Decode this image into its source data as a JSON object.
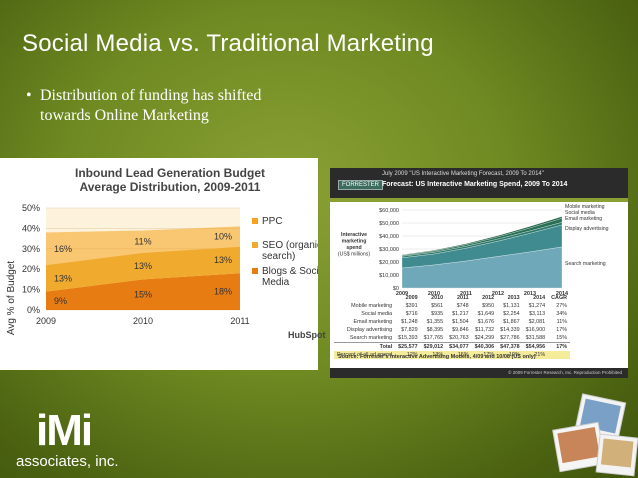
{
  "slide": {
    "title": "Social Media vs. Traditional Marketing",
    "bullet": "Distribution of funding has shifted towards Online Marketing",
    "bullet_line1": "Distribution of funding has shifted",
    "bullet_line2": "towards Online Marketing"
  },
  "colors": {
    "background": "#6f8a22",
    "ppc": "#f6a21c",
    "seo": "#f0aa2e",
    "blogs": "#e77d12"
  },
  "chart_data": [
    {
      "type": "area",
      "title": "Inbound Lead Generation Budget Average Distribution, 2009-2011",
      "title_line1": "Inbound Lead Generation Budget",
      "title_line2": "Average Distribution, 2009-2011",
      "ylabel": "Avg % of Budget",
      "xlabel": "",
      "x": [
        "2009",
        "2010",
        "2011"
      ],
      "yticks": [
        "0%",
        "10%",
        "20%",
        "30%",
        "40%",
        "50%"
      ],
      "ylim": [
        0,
        50
      ],
      "series": [
        {
          "name": "Blogs & Social Media",
          "values": [
            9,
            15,
            18
          ],
          "labels": [
            "9%",
            "15%",
            "18%"
          ]
        },
        {
          "name": "SEO (organic search)",
          "values": [
            13,
            13,
            13
          ],
          "labels": [
            "13%",
            "13%",
            "13%"
          ]
        },
        {
          "name": "PPC",
          "values": [
            16,
            11,
            10
          ],
          "labels": [
            "16%",
            "11%",
            "10%"
          ]
        }
      ],
      "legend": "right",
      "source": "HubSpot"
    },
    {
      "type": "area",
      "header_small": "July 2009 \"US Interactive Marketing Forecast, 2009 To 2014\"",
      "title": "Forecast: US Interactive Marketing Spend, 2009 To 2014",
      "brand": "FORRESTER",
      "ylabel": "Interactive marketing spend (US$ millions)",
      "yticks": [
        "$0",
        "$10,000",
        "$20,000",
        "$30,000",
        "$40,000",
        "$50,000",
        "$60,000"
      ],
      "ylim": [
        0,
        60000
      ],
      "x": [
        "2009",
        "2010",
        "2011",
        "2012",
        "2013",
        "2014"
      ],
      "cagr_label": "CAGR",
      "series": [
        {
          "name": "Mobile marketing",
          "values": [
            "$391",
            "$561",
            "$748",
            "$950",
            "$1,131",
            "$1,274"
          ],
          "cagr": "27%"
        },
        {
          "name": "Social media",
          "values": [
            "$716",
            "$935",
            "$1,217",
            "$1,649",
            "$2,254",
            "$3,113"
          ],
          "cagr": "34%"
        },
        {
          "name": "Email marketing",
          "values": [
            "$1,248",
            "$1,355",
            "$1,504",
            "$1,676",
            "$1,867",
            "$2,081"
          ],
          "cagr": "11%"
        },
        {
          "name": "Display advertising",
          "values": [
            "$7,829",
            "$8,395",
            "$9,846",
            "$11,732",
            "$14,339",
            "$16,900"
          ],
          "cagr": "17%"
        },
        {
          "name": "Search marketing",
          "values": [
            "$15,393",
            "$17,765",
            "$20,763",
            "$24,299",
            "$27,786",
            "$31,588"
          ],
          "cagr": "15%"
        }
      ],
      "total": {
        "name": "Total",
        "values": [
          "$25,577",
          "$29,012",
          "$34,077",
          "$40,306",
          "$47,378",
          "$54,956"
        ],
        "cagr": "17%"
      },
      "percent_row": {
        "name": "Percent of all ad spend",
        "values": [
          "12%",
          "13%",
          "15%",
          "17%",
          "19%",
          "21%"
        ]
      },
      "source": "Source: Forrester's Interactive Advertising Models, 4/09 and 10/08 (US only)",
      "copyright": "© 2009 Forrester Research, Inc. Reproduction Prohibited"
    }
  ],
  "logo": {
    "main": "iMi",
    "sub": "associates, inc."
  }
}
